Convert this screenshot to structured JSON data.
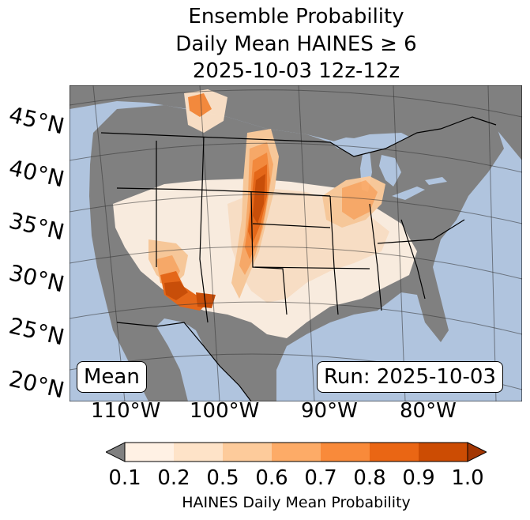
{
  "title": {
    "line1": "Ensemble Probability",
    "line2": "Daily Mean HAINES ≥ 6",
    "line3": "2025-10-03 12z-12z"
  },
  "lat_labels": [
    "45°N",
    "40°N",
    "35°N",
    "30°N",
    "25°N",
    "20°N"
  ],
  "lon_labels": [
    "110°W",
    "100°W",
    "90°W",
    "80°W"
  ],
  "mean_label": "Mean",
  "run_label": "Run: 2025-10-03",
  "colorbar": {
    "ticks": [
      "0.1",
      "0.2",
      "0.5",
      "0.6",
      "0.7",
      "0.8",
      "0.9",
      "1.0"
    ],
    "colors": [
      "#fff1e4",
      "#fee3c8",
      "#fdcb9b",
      "#fdab67",
      "#f98a3a",
      "#ea6614",
      "#cc4c03"
    ],
    "under_color": "#808080",
    "over_color": "#a33602",
    "label": "HAINES Daily Mean Probability"
  },
  "map_colors": {
    "ocean": "#b0c4de",
    "land_missing": "#808080",
    "lake": "#b0c4de"
  }
}
